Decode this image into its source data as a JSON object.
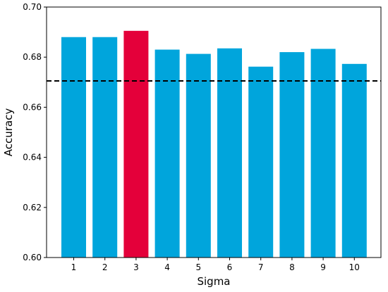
{
  "chart_data": {
    "type": "bar",
    "title": "",
    "xlabel": "Sigma",
    "ylabel": "Accuracy",
    "categories": [
      "1",
      "2",
      "3",
      "4",
      "5",
      "6",
      "7",
      "8",
      "9",
      "10"
    ],
    "values": [
      0.688,
      0.688,
      0.6905,
      0.683,
      0.6813,
      0.6835,
      0.6762,
      0.682,
      0.6833,
      0.6773
    ],
    "highlight_index": 2,
    "ylim": [
      0.6,
      0.7
    ],
    "yticks": [
      "0.60",
      "0.62",
      "0.64",
      "0.66",
      "0.68",
      "0.70"
    ],
    "ytick_values": [
      0.6,
      0.62,
      0.64,
      0.66,
      0.68,
      0.7
    ],
    "reference_line": {
      "value": 0.6705,
      "style": "dashed",
      "color": "#000000"
    },
    "grid": false,
    "colors": {
      "bar": "#00a5dc",
      "highlight": "#e4003a"
    }
  }
}
